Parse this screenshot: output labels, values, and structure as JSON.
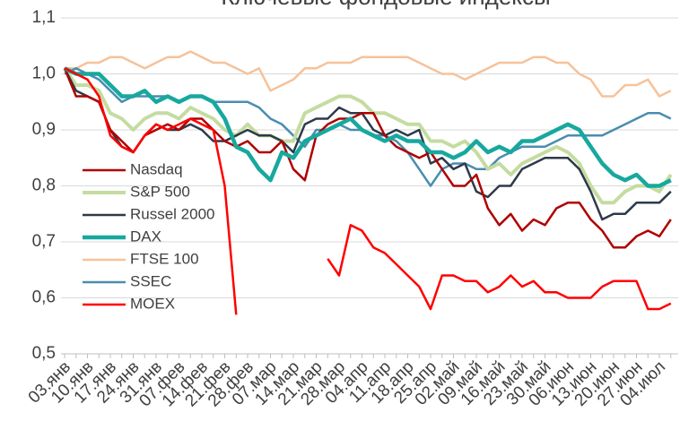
{
  "chart_data": {
    "type": "line",
    "title": "Ключевые фондовые индексы",
    "categories": [
      "03.янв",
      null,
      "10.янв",
      null,
      "17.янв",
      null,
      "24.янв",
      null,
      "31.янв",
      null,
      "07.фев",
      null,
      "14.фев",
      null,
      "21.фев",
      null,
      "28.фев",
      null,
      "07.мар",
      null,
      "14.мар",
      null,
      "21.мар",
      null,
      "28.мар",
      null,
      "04.апр",
      null,
      "11.апр",
      null,
      "18.апр",
      null,
      "25.апр",
      null,
      "02.май",
      null,
      "09.май",
      null,
      "16.май",
      null,
      "23.май",
      null,
      "30.май",
      null,
      "06.июн",
      null,
      "13.июн",
      null,
      "20.июн",
      null,
      "27.июн",
      null,
      "04.июл",
      null
    ],
    "series": [
      {
        "name": "Nasdaq",
        "color": "#b00000",
        "width": 2.5,
        "values": [
          1.01,
          0.96,
          0.96,
          0.95,
          0.9,
          0.88,
          0.86,
          0.89,
          0.9,
          0.91,
          0.9,
          0.92,
          0.92,
          0.9,
          0.88,
          0.87,
          0.88,
          0.86,
          0.86,
          0.88,
          0.83,
          0.81,
          0.89,
          0.91,
          0.92,
          0.92,
          0.93,
          0.93,
          0.89,
          0.87,
          0.86,
          0.85,
          0.86,
          0.83,
          0.8,
          0.8,
          0.82,
          0.76,
          0.73,
          0.75,
          0.72,
          0.74,
          0.73,
          0.76,
          0.77,
          0.77,
          0.74,
          0.72,
          0.69,
          0.69,
          0.71,
          0.72,
          0.71,
          0.74
        ]
      },
      {
        "name": "S&P 500",
        "color": "#c4dca0",
        "width": 4,
        "values": [
          1.01,
          0.98,
          0.98,
          0.97,
          0.93,
          0.92,
          0.9,
          0.92,
          0.93,
          0.93,
          0.92,
          0.94,
          0.93,
          0.92,
          0.9,
          0.89,
          0.91,
          0.89,
          0.89,
          0.88,
          0.88,
          0.93,
          0.94,
          0.95,
          0.96,
          0.96,
          0.95,
          0.93,
          0.93,
          0.92,
          0.91,
          0.91,
          0.88,
          0.88,
          0.87,
          0.88,
          0.86,
          0.83,
          0.84,
          0.82,
          0.84,
          0.85,
          0.86,
          0.87,
          0.86,
          0.84,
          0.8,
          0.77,
          0.77,
          0.79,
          0.8,
          0.8,
          0.79,
          0.82
        ]
      },
      {
        "name": "Russel 2000",
        "color": "#2e3a4a",
        "width": 2.5,
        "values": [
          1.01,
          0.97,
          0.96,
          0.95,
          0.9,
          0.87,
          0.86,
          0.89,
          0.91,
          0.9,
          0.9,
          0.91,
          0.9,
          0.88,
          0.88,
          0.89,
          0.9,
          0.89,
          0.89,
          0.88,
          0.86,
          0.91,
          0.92,
          0.92,
          0.94,
          0.93,
          0.93,
          0.9,
          0.89,
          0.9,
          0.89,
          0.9,
          0.84,
          0.85,
          0.83,
          0.84,
          0.79,
          0.78,
          0.8,
          0.8,
          0.83,
          0.84,
          0.85,
          0.85,
          0.85,
          0.83,
          0.79,
          0.74,
          0.75,
          0.75,
          0.77,
          0.77,
          0.77,
          0.79
        ]
      },
      {
        "name": "DAX",
        "color": "#17a89e",
        "width": 4.5,
        "values": [
          1.01,
          1.0,
          1.0,
          1.0,
          0.98,
          0.96,
          0.96,
          0.97,
          0.95,
          0.96,
          0.95,
          0.96,
          0.96,
          0.95,
          0.92,
          0.87,
          0.86,
          0.83,
          0.81,
          0.86,
          0.85,
          0.88,
          0.89,
          0.9,
          0.91,
          0.92,
          0.9,
          0.89,
          0.88,
          0.89,
          0.88,
          0.88,
          0.86,
          0.86,
          0.85,
          0.86,
          0.88,
          0.86,
          0.87,
          0.86,
          0.88,
          0.88,
          0.89,
          0.9,
          0.91,
          0.9,
          0.87,
          0.84,
          0.82,
          0.81,
          0.82,
          0.8,
          0.8,
          0.81
        ]
      },
      {
        "name": "FTSE 100",
        "color": "#f6c29a",
        "width": 2.5,
        "values": [
          1.01,
          1.01,
          1.02,
          1.02,
          1.03,
          1.03,
          1.02,
          1.01,
          1.02,
          1.03,
          1.03,
          1.04,
          1.03,
          1.02,
          1.02,
          1.01,
          1.0,
          1.01,
          0.97,
          0.98,
          0.99,
          1.01,
          1.01,
          1.02,
          1.02,
          1.02,
          1.03,
          1.03,
          1.03,
          1.03,
          1.03,
          1.02,
          1.01,
          1.0,
          1.0,
          0.99,
          1.0,
          1.01,
          1.02,
          1.02,
          1.02,
          1.03,
          1.03,
          1.02,
          1.02,
          1.0,
          0.99,
          0.96,
          0.96,
          0.98,
          0.98,
          0.99,
          0.96,
          0.97
        ]
      },
      {
        "name": "SSEC",
        "color": "#4a8db0",
        "width": 2.5,
        "values": [
          1.0,
          1.01,
          1.0,
          0.99,
          0.97,
          0.95,
          0.96,
          0.96,
          0.96,
          0.96,
          0.95,
          0.96,
          0.96,
          0.95,
          0.95,
          0.95,
          0.95,
          0.94,
          0.92,
          0.91,
          0.89,
          0.87,
          0.9,
          0.9,
          0.91,
          0.9,
          0.9,
          0.89,
          0.89,
          0.88,
          0.86,
          0.83,
          0.8,
          0.83,
          0.84,
          0.84,
          0.83,
          0.83,
          0.85,
          0.86,
          0.87,
          0.87,
          0.87,
          0.88,
          0.89,
          0.89,
          0.89,
          0.89,
          0.9,
          0.91,
          0.92,
          0.93,
          0.93,
          0.92
        ]
      },
      {
        "name": "MOEX",
        "color": "#ff0000",
        "width": 2.5,
        "values": [
          1.01,
          1.0,
          0.99,
          0.96,
          0.89,
          0.87,
          0.86,
          0.89,
          0.91,
          0.9,
          0.91,
          0.92,
          0.91,
          0.9,
          0.8,
          0.57,
          null,
          null,
          null,
          null,
          null,
          null,
          null,
          0.67,
          0.64,
          0.73,
          0.72,
          0.69,
          0.68,
          0.66,
          0.64,
          0.62,
          0.58,
          0.64,
          0.64,
          0.63,
          0.63,
          0.61,
          0.62,
          0.64,
          0.62,
          0.63,
          0.61,
          0.61,
          0.6,
          0.6,
          0.6,
          0.62,
          0.63,
          0.63,
          0.63,
          0.58,
          0.58,
          0.59
        ]
      }
    ],
    "ylim": [
      0.5,
      1.1
    ],
    "yticks": [
      {
        "value": 0.5,
        "label": "0,5"
      },
      {
        "value": 0.6,
        "label": "0,6"
      },
      {
        "value": 0.7,
        "label": "0,7"
      },
      {
        "value": 0.8,
        "label": "0,8"
      },
      {
        "value": 0.9,
        "label": "0,9"
      },
      {
        "value": 1.0,
        "label": "1,0"
      },
      {
        "value": 1.1,
        "label": "1,1"
      }
    ],
    "grid": true
  }
}
